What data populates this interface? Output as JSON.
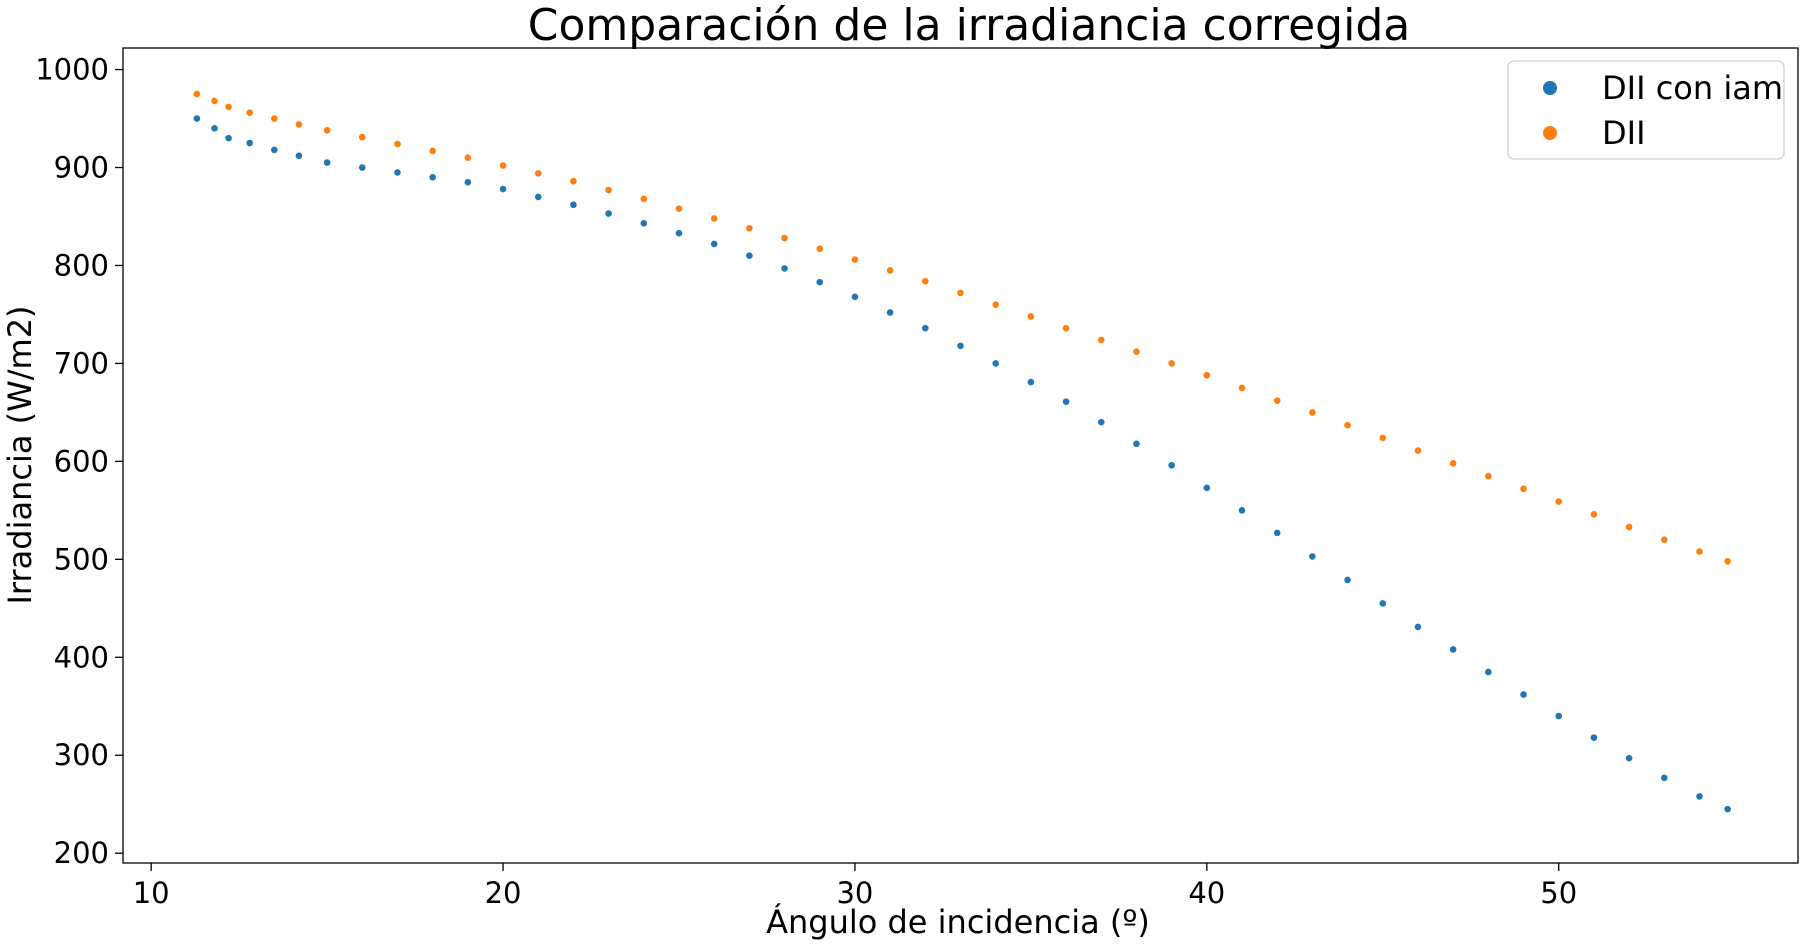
{
  "chart_data": {
    "type": "scatter",
    "title": "Comparación de la irradiancia corregida",
    "xlabel": "Ángulo de incidencia (º)",
    "ylabel": "Irradiancia (W/m2)",
    "xlim": [
      9.2,
      56.8
    ],
    "ylim": [
      190,
      1022
    ],
    "xticks": [
      10,
      20,
      30,
      40,
      50
    ],
    "yticks": [
      200,
      300,
      400,
      500,
      600,
      700,
      800,
      900,
      1000
    ],
    "grid": false,
    "legend_position": "top-right",
    "series": [
      {
        "name": "DII con iam",
        "color": "#1f77b4",
        "x": [
          11.3,
          11.8,
          12.2,
          12.8,
          13.5,
          14.2,
          15.0,
          16.0,
          17.0,
          18.0,
          19.0,
          20.0,
          21.0,
          22.0,
          23.0,
          24.0,
          25.0,
          26.0,
          27.0,
          28.0,
          29.0,
          30.0,
          31.0,
          32.0,
          33.0,
          34.0,
          35.0,
          36.0,
          37.0,
          38.0,
          39.0,
          40.0,
          41.0,
          42.0,
          43.0,
          44.0,
          45.0,
          46.0,
          47.0,
          48.0,
          49.0,
          50.0,
          51.0,
          52.0,
          53.0,
          54.0,
          54.8
        ],
        "y": [
          950,
          940,
          930,
          925,
          918,
          912,
          905,
          900,
          895,
          890,
          885,
          878,
          870,
          862,
          853,
          843,
          833,
          822,
          810,
          797,
          783,
          768,
          752,
          736,
          718,
          700,
          681,
          661,
          640,
          618,
          596,
          573,
          550,
          527,
          503,
          479,
          455,
          431,
          408,
          385,
          362,
          340,
          318,
          297,
          277,
          258,
          245
        ]
      },
      {
        "name": "DII",
        "color": "#ff7f0e",
        "x": [
          11.3,
          11.8,
          12.2,
          12.8,
          13.5,
          14.2,
          15.0,
          16.0,
          17.0,
          18.0,
          19.0,
          20.0,
          21.0,
          22.0,
          23.0,
          24.0,
          25.0,
          26.0,
          27.0,
          28.0,
          29.0,
          30.0,
          31.0,
          32.0,
          33.0,
          34.0,
          35.0,
          36.0,
          37.0,
          38.0,
          39.0,
          40.0,
          41.0,
          42.0,
          43.0,
          44.0,
          45.0,
          46.0,
          47.0,
          48.0,
          49.0,
          50.0,
          51.0,
          52.0,
          53.0,
          54.0,
          54.8
        ],
        "y": [
          975,
          968,
          962,
          956,
          950,
          944,
          938,
          931,
          924,
          917,
          910,
          902,
          894,
          886,
          877,
          868,
          858,
          848,
          838,
          828,
          817,
          806,
          795,
          784,
          772,
          760,
          748,
          736,
          724,
          712,
          700,
          688,
          675,
          662,
          650,
          637,
          624,
          611,
          598,
          585,
          572,
          559,
          546,
          533,
          520,
          508,
          498
        ]
      }
    ]
  }
}
